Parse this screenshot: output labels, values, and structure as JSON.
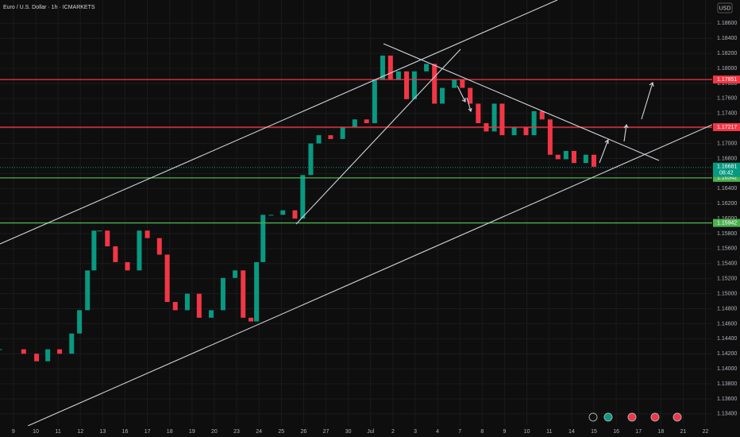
{
  "chart_data": {
    "type": "candlestick",
    "title": "Euro / U.S. Dollar · 1h · ICMARKETS",
    "currency": "USD",
    "countdown": "08:42",
    "x": [
      -0.61,
      0.46,
      1.04,
      1.54,
      2.07,
      2.61,
      2.96,
      3.32,
      3.61,
      3.86,
      4.21,
      4.57,
      5.11,
      5.64,
      6,
      6.54,
      6.89,
      7.25,
      7.79,
      8.32,
      8.86,
      9.39,
      9.93,
      10.29,
      10.64,
      10.89,
      11.18,
      11.54,
      12.07,
      12.61,
      12.96,
      13.32,
      13.68,
      14.21,
      14.75,
      15.29,
      15.82,
      16.18,
      16.54,
      16.89,
      17.25,
      17.61,
      17.96,
      18.5,
      18.86,
      19.21,
      19.75,
      20.11,
      20.46,
      20.82,
      21.18,
      21.54,
      21.89,
      22.43,
      22.96,
      23.32,
      23.68,
      24.04,
      24.39,
      24.75,
      25.11,
      25.64,
      26
    ],
    "values": [
      1.1426,
      1.142,
      1.141,
      1.1426,
      1.142,
      1.1447,
      1.1478,
      1.1531,
      1.1584,
      1.1584,
      1.1563,
      1.1542,
      1.1531,
      1.1584,
      1.1574,
      1.1552,
      1.1489,
      1.1478,
      1.15,
      1.1468,
      1.1478,
      1.1521,
      1.1531,
      1.1468,
      1.1463,
      1.1542,
      1.1605,
      1.1605,
      1.1611,
      1.16,
      1.1658,
      1.17,
      1.1711,
      1.1706,
      1.1722,
      1.1732,
      1.1727,
      1.1785,
      1.1817,
      1.1785,
      1.1796,
      1.1759,
      1.1796,
      1.1806,
      1.1753,
      1.1774,
      1.1785,
      1.1774,
      1.1753,
      1.1727,
      1.1716,
      1.1753,
      1.1711,
      1.1722,
      1.1711,
      1.1743,
      1.1732,
      1.1685,
      1.1679,
      1.169,
      1.1674,
      1.1685,
      1.1669
    ],
    "up_color": "#089981",
    "down_color": "#f23645",
    "current_price": 1.16681,
    "levels": [
      {
        "value": 1.17851,
        "color": "#f23645"
      },
      {
        "value": 1.17217,
        "color": "#f23645"
      },
      {
        "value": 1.16542,
        "color": "#4caf50"
      },
      {
        "value": 1.15942,
        "color": "#4caf50"
      }
    ],
    "xlim": [
      -0.6,
      31.3
    ],
    "xticks": [
      {
        "value": 0,
        "label": "9"
      },
      {
        "value": 1,
        "label": "10"
      },
      {
        "value": 2,
        "label": "11"
      },
      {
        "value": 3,
        "label": "12"
      },
      {
        "value": 4,
        "label": "13"
      },
      {
        "value": 5,
        "label": "16"
      },
      {
        "value": 6,
        "label": "17"
      },
      {
        "value": 7,
        "label": "18"
      },
      {
        "value": 8,
        "label": "19"
      },
      {
        "value": 9,
        "label": "20"
      },
      {
        "value": 10,
        "label": "23"
      },
      {
        "value": 11,
        "label": "24"
      },
      {
        "value": 12,
        "label": "25"
      },
      {
        "value": 13,
        "label": "26"
      },
      {
        "value": 14,
        "label": "27"
      },
      {
        "value": 15,
        "label": "30"
      },
      {
        "value": 16,
        "label": "Jul"
      },
      {
        "value": 17,
        "label": "2"
      },
      {
        "value": 18,
        "label": "3"
      },
      {
        "value": 19,
        "label": "4"
      },
      {
        "value": 20,
        "label": "7"
      },
      {
        "value": 21,
        "label": "8"
      },
      {
        "value": 22,
        "label": "9"
      },
      {
        "value": 23,
        "label": "10"
      },
      {
        "value": 24,
        "label": "11"
      },
      {
        "value": 25,
        "label": "14"
      },
      {
        "value": 26,
        "label": "15"
      },
      {
        "value": 27,
        "label": "16"
      },
      {
        "value": 28,
        "label": "17"
      },
      {
        "value": 29,
        "label": "18"
      },
      {
        "value": 30,
        "label": "21"
      },
      {
        "value": 31,
        "label": "22"
      }
    ],
    "ylim": [
      1.1324,
      1.1891
    ],
    "yticks": [
      {
        "value": 1.134,
        "label": "1.13400"
      },
      {
        "value": 1.136,
        "label": "1.13600"
      },
      {
        "value": 1.138,
        "label": "1.13800"
      },
      {
        "value": 1.14,
        "label": "1.14000"
      },
      {
        "value": 1.142,
        "label": "1.14200"
      },
      {
        "value": 1.144,
        "label": "1.14400"
      },
      {
        "value": 1.146,
        "label": "1.14600"
      },
      {
        "value": 1.148,
        "label": "1.14800"
      },
      {
        "value": 1.15,
        "label": "1.15000"
      },
      {
        "value": 1.152,
        "label": "1.15200"
      },
      {
        "value": 1.154,
        "label": "1.15400"
      },
      {
        "value": 1.156,
        "label": "1.15600"
      },
      {
        "value": 1.158,
        "label": "1.15800"
      },
      {
        "value": 1.16,
        "label": "1.16000"
      },
      {
        "value": 1.162,
        "label": "1.16200"
      },
      {
        "value": 1.164,
        "label": "1.16400"
      },
      {
        "value": 1.166,
        "label": "1.16600"
      },
      {
        "value": 1.168,
        "label": "1.16800"
      },
      {
        "value": 1.17,
        "label": "1.17000"
      },
      {
        "value": 1.172,
        "label": "1.17200"
      },
      {
        "value": 1.174,
        "label": "1.17400"
      },
      {
        "value": 1.176,
        "label": "1.17600"
      },
      {
        "value": 1.178,
        "label": "1.17800"
      },
      {
        "value": 1.18,
        "label": "1.18000"
      },
      {
        "value": 1.182,
        "label": "1.18200"
      },
      {
        "value": 1.184,
        "label": "1.18400"
      },
      {
        "value": 1.186,
        "label": "1.18600"
      }
    ],
    "grid": true
  }
}
